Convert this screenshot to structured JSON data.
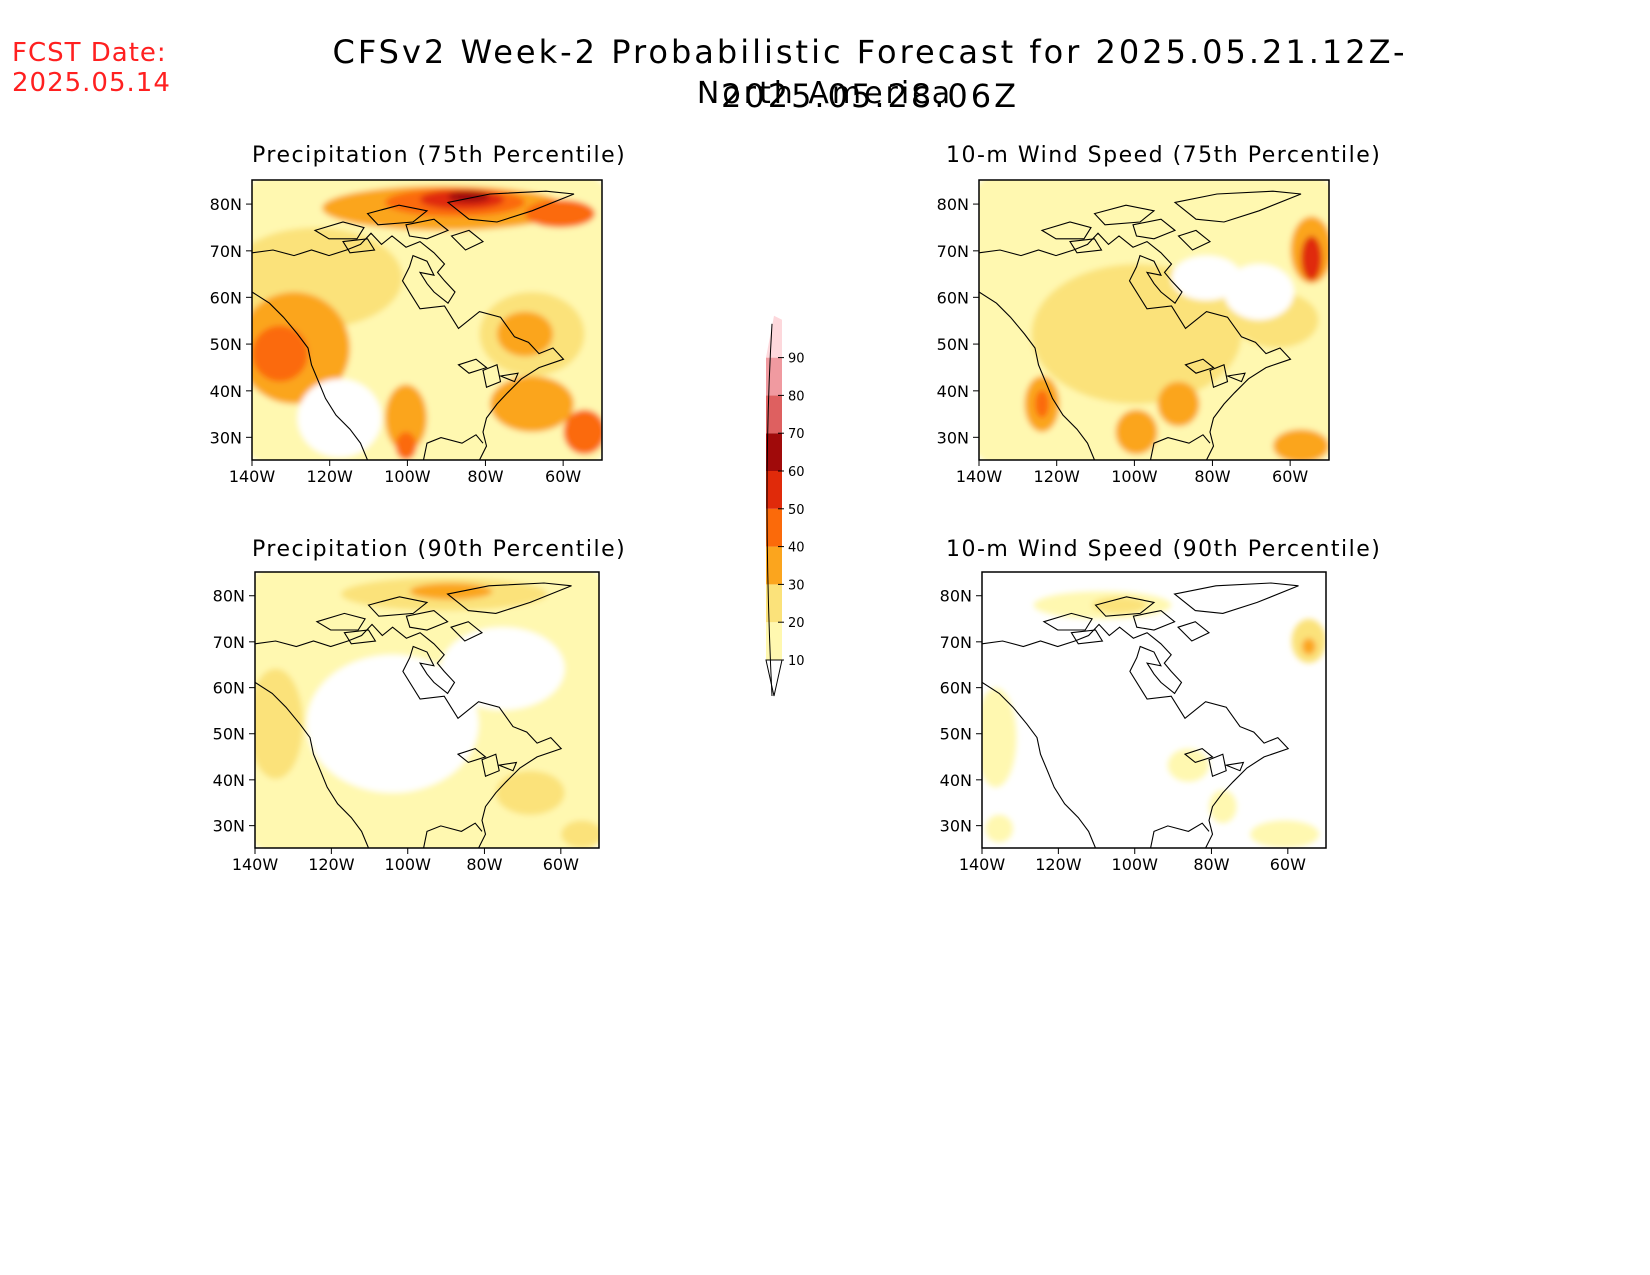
{
  "header": {
    "fcst_label": "FCST Date:",
    "fcst_date": "2025.05.14",
    "title": "CFSv2 Week-2 Probabilistic Forecast for 2025.05.21.12Z-2025.05.28.06Z",
    "subtitle": "North America"
  },
  "axes": {
    "lon_ticks": [
      "140W",
      "120W",
      "100W",
      "80W",
      "60W"
    ],
    "lat_ticks": [
      "80N",
      "70N",
      "60N",
      "50N",
      "40N",
      "30N"
    ]
  },
  "panels": [
    {
      "id": "p75",
      "title": "Precipitation (75th Percentile)",
      "intensity": "high"
    },
    {
      "id": "p90",
      "title": "Precipitation (90th Percentile)",
      "intensity": "low"
    },
    {
      "id": "w75",
      "title": "10-m Wind Speed (75th Percentile)",
      "intensity": "medium"
    },
    {
      "id": "w90",
      "title": "10-m Wind Speed (90th Percentile)",
      "intensity": "minimal"
    }
  ],
  "colorbar": {
    "labels": [
      "10",
      "20",
      "30",
      "40",
      "50",
      "60",
      "70",
      "80",
      "90"
    ],
    "colors": [
      "#fff8b0",
      "#fbe27a",
      "#fba51e",
      "#fb6a0a",
      "#e02a0a",
      "#a00a0a",
      "#de6060",
      "#f09aa0",
      "#fdd8dc"
    ]
  }
}
